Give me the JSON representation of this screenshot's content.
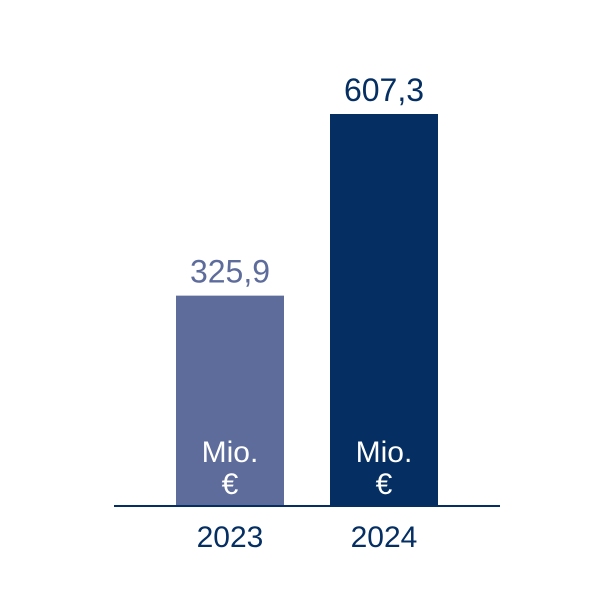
{
  "chart_data": {
    "type": "bar",
    "title": "",
    "xlabel": "",
    "ylabel": "",
    "categories": [
      "2023",
      "2024"
    ],
    "values": [
      325.9,
      607.3
    ],
    "value_labels": [
      "325,9",
      "607,3"
    ],
    "unit_label": [
      "Mio.",
      "€"
    ],
    "ylim": [
      0,
      700
    ],
    "grid": false,
    "legend": "none",
    "colors": [
      "#5E6C9C",
      "#052F62"
    ],
    "axis_color": "#052F62",
    "category_label_color": "#052F62"
  }
}
